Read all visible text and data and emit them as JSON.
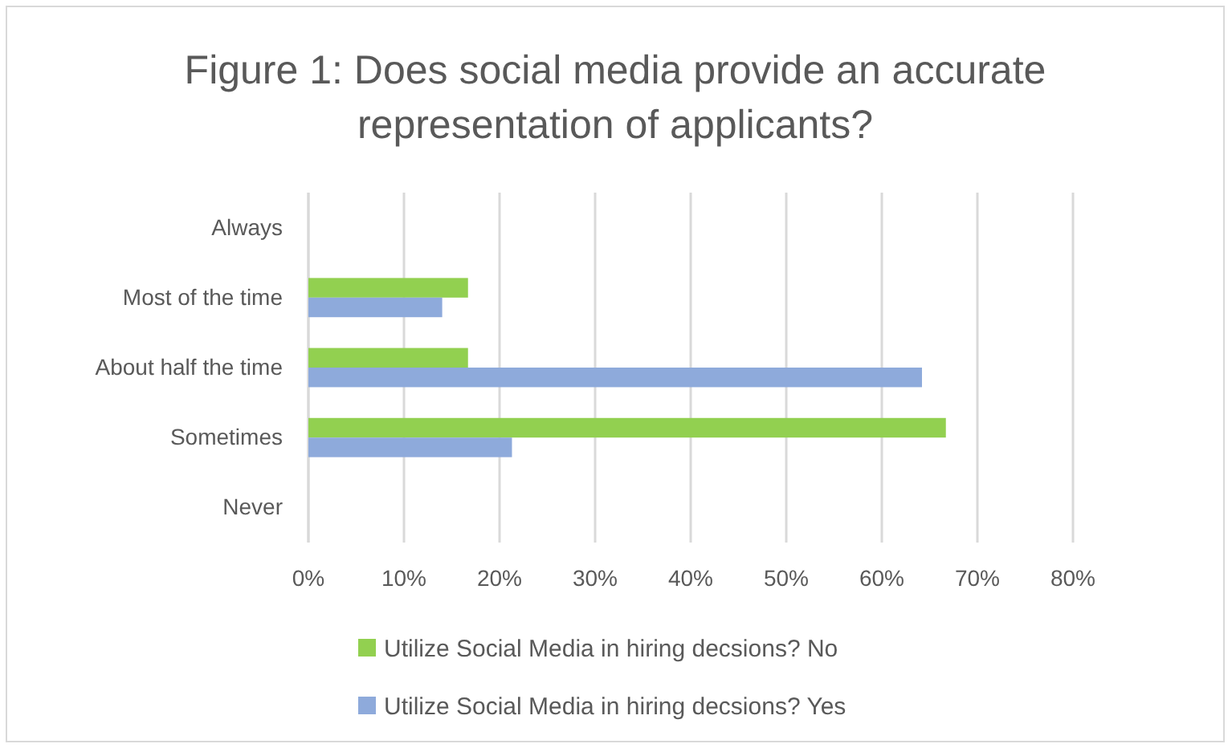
{
  "chart_data": {
    "type": "bar",
    "orientation": "horizontal",
    "title": "Figure 1: Does social media provide an accurate representation of applicants?",
    "categories": [
      "Always",
      "Most of the time",
      "About half the time",
      "Sometimes",
      "Never"
    ],
    "series": [
      {
        "name": "Utilize Social Media in hiring decsions? No",
        "color": "#92d050",
        "values": [
          0,
          16.7,
          16.7,
          66.7,
          0
        ]
      },
      {
        "name": "Utilize Social Media in hiring decsions? Yes",
        "color": "#8eaadb",
        "values": [
          0,
          14,
          64.2,
          21.3,
          0
        ]
      }
    ],
    "xlim": [
      0,
      80
    ],
    "xticks": [
      {
        "value": 0,
        "label": "0%"
      },
      {
        "value": 10,
        "label": "10%"
      },
      {
        "value": 20,
        "label": "20%"
      },
      {
        "value": 30,
        "label": "30%"
      },
      {
        "value": 40,
        "label": "40%"
      },
      {
        "value": 50,
        "label": "50%"
      },
      {
        "value": 60,
        "label": "60%"
      },
      {
        "value": 70,
        "label": "70%"
      },
      {
        "value": 80,
        "label": "80%"
      }
    ],
    "grid": "x",
    "legend": "bottom"
  }
}
